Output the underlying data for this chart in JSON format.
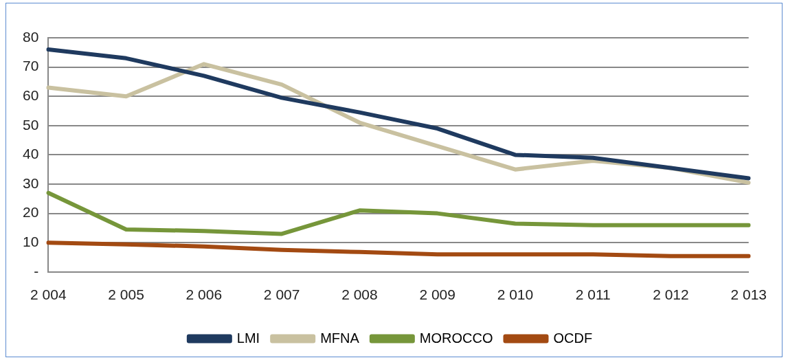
{
  "chart_data": {
    "type": "line",
    "categories": [
      "2 004",
      "2 005",
      "2 006",
      "2 007",
      "2 008",
      "2 009",
      "2 010",
      "2 011",
      "2 012",
      "2 013"
    ],
    "series": [
      {
        "name": "LMI",
        "color": "#1f3a5f",
        "values": [
          76,
          73,
          67,
          59.5,
          54.5,
          49,
          40,
          39,
          35.5,
          32
        ]
      },
      {
        "name": "MFNA",
        "color": "#c9c1a0",
        "values": [
          63,
          60,
          71,
          64,
          51,
          43,
          35,
          38,
          35.5,
          30.5
        ]
      },
      {
        "name": "MOROCCO",
        "color": "#76963a",
        "values": [
          27,
          14.5,
          14,
          13,
          21,
          20,
          16.5,
          16,
          16,
          16
        ]
      },
      {
        "name": "OCDF",
        "color": "#a34a12",
        "values": [
          10,
          9.4,
          8.7,
          7.5,
          6.8,
          6,
          6,
          6,
          5.4,
          5.4
        ]
      }
    ],
    "ylim": [
      0,
      80
    ],
    "yticks": [
      {
        "value": 0,
        "label": "-"
      },
      10,
      20,
      30,
      40,
      50,
      60,
      70,
      80
    ],
    "grid": "y",
    "legend": "bottom",
    "marker": "none",
    "line_style": "solid"
  }
}
